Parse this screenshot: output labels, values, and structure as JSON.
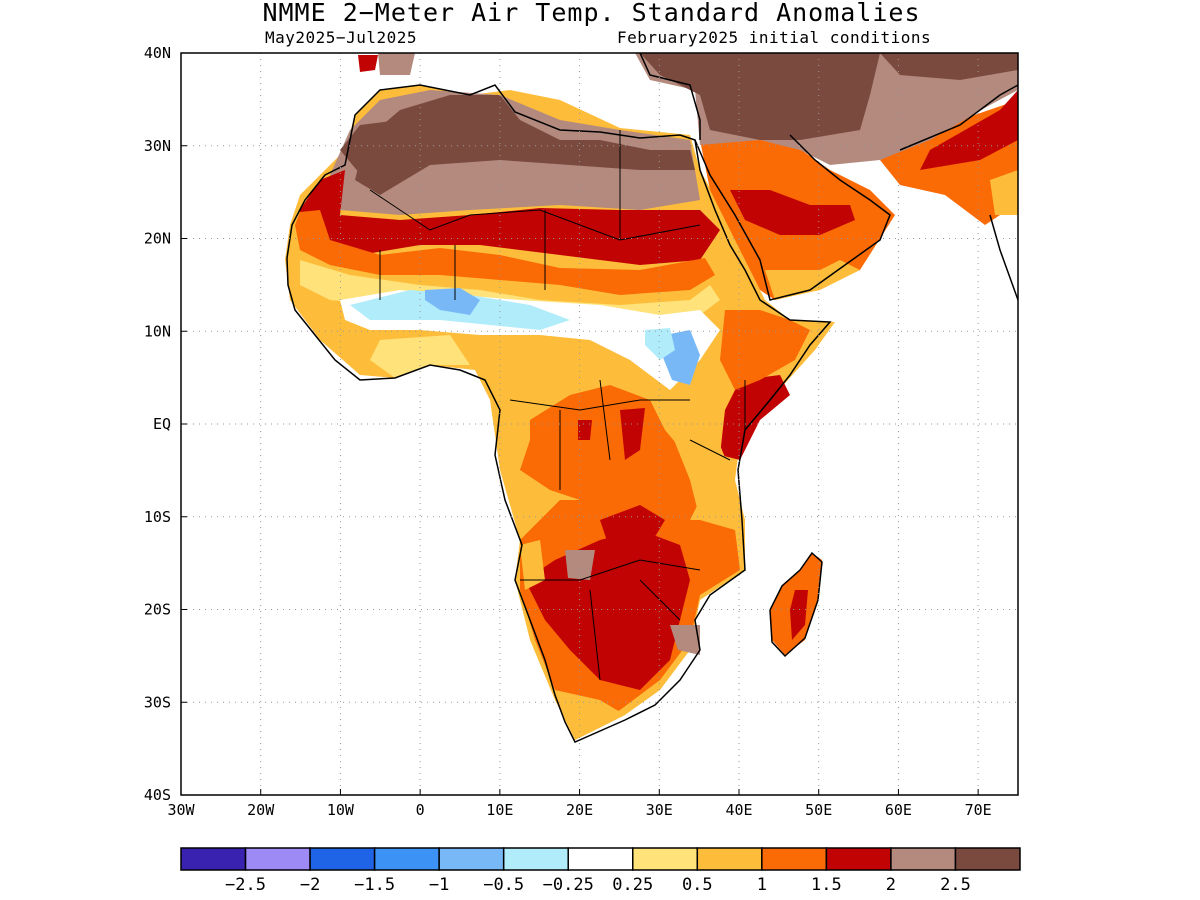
{
  "title": "NMME 2−Meter Air Temp. Standard Anomalies",
  "subtitle_left": "May2025−Jul2025",
  "subtitle_right": "February2025 initial conditions",
  "map": {
    "region": "Africa",
    "lon_range": [
      -30,
      75
    ],
    "lat_range": [
      -40,
      40
    ],
    "lon_ticks": [
      "30W",
      "20W",
      "10W",
      "0",
      "10E",
      "20E",
      "30E",
      "40E",
      "50E",
      "60E",
      "70E"
    ],
    "lat_ticks": [
      "40N",
      "30N",
      "20N",
      "10N",
      "EQ",
      "10S",
      "20S",
      "30S",
      "40S"
    ],
    "grid": true
  },
  "legend": {
    "colors": [
      "#3a22b0",
      "#9d8af5",
      "#1f64e6",
      "#3d93f5",
      "#78b8f7",
      "#b0ecfa",
      "#ffffff",
      "#ffe27a",
      "#fdbd3a",
      "#fa6a05",
      "#c20303",
      "#b48a7e",
      "#7a4a3f"
    ],
    "labels": [
      "−2.5",
      "−2",
      "−1.5",
      "−1",
      "−0.5",
      "−0.25",
      "0.25",
      "0.5",
      "1",
      "1.5",
      "2",
      "2.5"
    ]
  }
}
